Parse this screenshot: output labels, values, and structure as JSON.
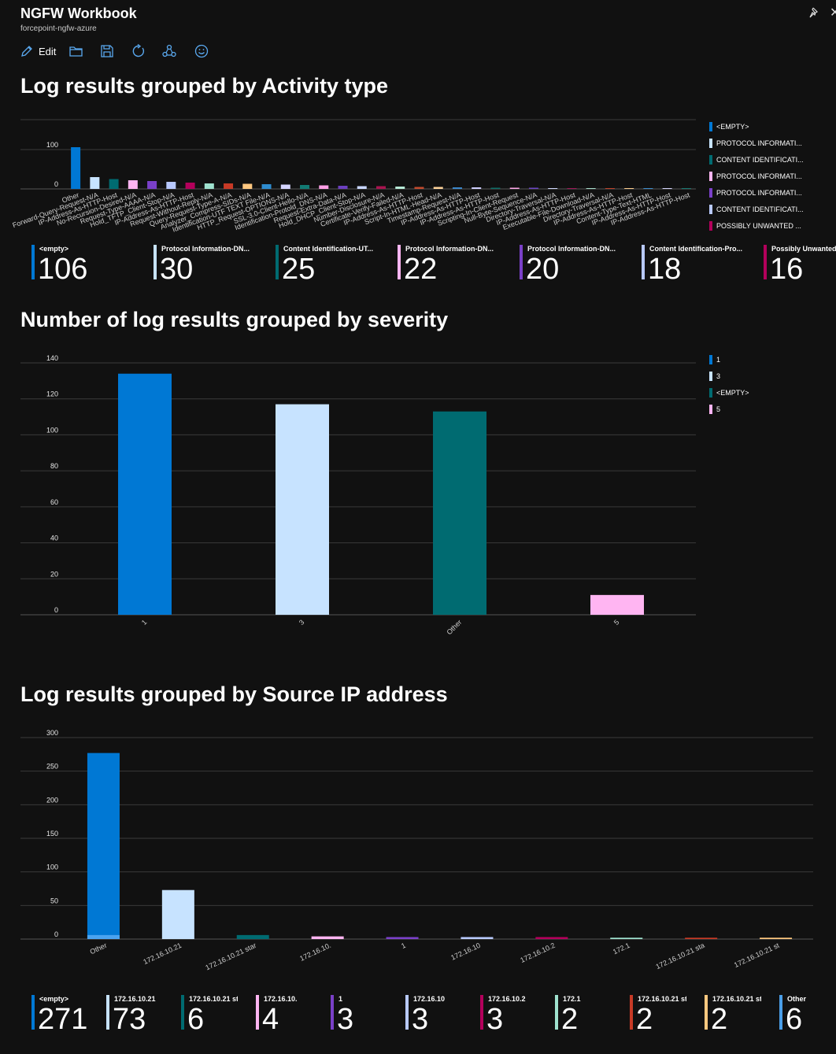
{
  "app": {
    "title": "NGFW Workbook",
    "subtitle": "forcepoint-ngfw-azure"
  },
  "toolbar": {
    "edit_label": "Edit"
  },
  "icons": [
    "pencil-icon",
    "folder-icon",
    "save-icon",
    "refresh-icon",
    "share-icon",
    "feedback-smiley-icon",
    "pin-icon",
    "close-icon"
  ],
  "sections": {
    "activity": {
      "title": "Log results grouped by Activity type"
    },
    "severity": {
      "title": "Number of log results grouped by severity"
    },
    "source_ip": {
      "title": "Log results grouped by Source IP address"
    }
  },
  "chart_data": [
    {
      "type": "bar",
      "ylim": [
        0,
        110
      ],
      "yticks": [
        0,
        100
      ],
      "categories": [
        "Other",
        "Forward-Query-Request-N/A",
        "IP-Address-As-HTTP-Host",
        "No-Recursion-Desired-N/A",
        "Request-Type-AAAA-N/A",
        "Hold_TFTP_Client-Stop-N/A",
        "IP-Address-As-HTTP-Host",
        "Request-Without-Reply-N/A",
        "Query-Request-Type-A-N/A",
        "Analyzer_Compress-SIDs-N/A",
        "Identification-UTF TEXT File-N/A",
        "HTTP_Request-OPTIONS-N/A",
        "SSL-3.0-Client-Hello-N/A",
        "Identification-Protold_DNS-N/A",
        "Request-Extra-Data-N/A",
        "Hold_DHCP_Client-Stop-N/A",
        "Number-Disclosure-N/A",
        "Certificate-Verify-Failed-N/A",
        "IP-Address-As-HTTP-Host",
        "Script-In-HTML-Head-N/A",
        "Timestamp-Request-N/A",
        "IP-Address-As-HTTP-Host",
        "IP-Address-As-HTTP-Host",
        "Scripting-In-Client-Request",
        "Null-Byte-Sequence-N/A",
        "Directory-Traversal-N/A",
        "IP-Address-As-HTTP-Host",
        "Executable-File-Download-N/A",
        "Directory-Traversal-N/A",
        "IP-Address-As-HTTP-Host",
        "Content-Type-Text-HTML",
        "IP-Address-As-HTTP-Host",
        "IP-Address-As-HTTP-Host"
      ],
      "values": [
        106,
        30,
        25,
        22,
        20,
        18,
        16,
        14,
        14,
        13,
        12,
        11,
        10,
        9,
        8,
        7,
        7,
        6,
        5,
        5,
        4,
        4,
        3,
        3,
        3,
        2,
        2,
        2,
        2,
        2,
        1,
        1,
        1
      ],
      "colors": [
        "#0078d4",
        "#c7e3ff",
        "#006b71",
        "#ffb5f2",
        "#7a40c8",
        "#b8c9ff",
        "#b3005b",
        "#9fe2cf",
        "#c73a26",
        "#ffc880",
        "#2e8ccf",
        "#d5d5ff",
        "#127a73",
        "#ff9fe6",
        "#6b3fbf",
        "#c9d6ff",
        "#a8144f",
        "#b7ead7",
        "#c24a2e",
        "#ffd49a",
        "#3c88cc",
        "#cfcfff",
        "#0f6e68",
        "#ffa9e9",
        "#6c47c4",
        "#d2dbff",
        "#a1185a",
        "#a9e0cd",
        "#c2442b",
        "#ffcf8f",
        "#408fd0",
        "#d8d8ff",
        "#1a7a73"
      ],
      "legend": [
        {
          "label": "<EMPTY>",
          "color": "#0078d4"
        },
        {
          "label": "PROTOCOL INFORMATI...",
          "color": "#c7e3ff"
        },
        {
          "label": "CONTENT IDENTIFICATI...",
          "color": "#006b71"
        },
        {
          "label": "PROTOCOL INFORMATI...",
          "color": "#ffb5f2"
        },
        {
          "label": "PROTOCOL INFORMATI...",
          "color": "#7a40c8"
        },
        {
          "label": "CONTENT IDENTIFICATI...",
          "color": "#b8c9ff"
        },
        {
          "label": "POSSIBLY UNWANTED ...",
          "color": "#b3005b"
        }
      ],
      "tiles": [
        {
          "label": "<empty>",
          "value": "106",
          "color": "#0078d4"
        },
        {
          "label": "Protocol Information-DN...",
          "value": "30",
          "color": "#c7e3ff"
        },
        {
          "label": "Content Identification-UT...",
          "value": "25",
          "color": "#006b71"
        },
        {
          "label": "Protocol Information-DN...",
          "value": "22",
          "color": "#ffb5f2"
        },
        {
          "label": "Protocol Information-DN...",
          "value": "20",
          "color": "#7a40c8"
        },
        {
          "label": "Content Identification-Pro...",
          "value": "18",
          "color": "#b8c9ff"
        },
        {
          "label": "Possibly Unwanted Co",
          "value": "16",
          "color": "#b3005b"
        }
      ]
    },
    {
      "type": "bar",
      "ylim": [
        0,
        140
      ],
      "yticks": [
        0,
        20,
        40,
        60,
        80,
        100,
        120,
        140
      ],
      "categories": [
        "1",
        "3",
        "Other",
        "5"
      ],
      "values": [
        134,
        117,
        113,
        11
      ],
      "colors": [
        "#0078d4",
        "#c7e3ff",
        "#006b71",
        "#ffb5f2"
      ],
      "legend": [
        {
          "label": "1",
          "color": "#0078d4"
        },
        {
          "label": "3",
          "color": "#c7e3ff"
        },
        {
          "label": "<EMPTY>",
          "color": "#006b71"
        },
        {
          "label": "5",
          "color": "#ffb5f2"
        }
      ]
    },
    {
      "type": "bar",
      "ylim": [
        0,
        300
      ],
      "yticks": [
        0,
        50,
        100,
        150,
        200,
        250,
        300
      ],
      "categories": [
        "Other",
        "172.16.10.21",
        "172.16.10.21 star",
        "172.16.10.",
        "1",
        "172.16.10",
        "172.16.10.2",
        "172.1",
        "172.16.10.21 sta",
        "172.16.10.21 st"
      ],
      "values": [
        277,
        73,
        6,
        4,
        3,
        3,
        3,
        2,
        2,
        2
      ],
      "inner_values": [
        6,
        0,
        0,
        0,
        0,
        0,
        0,
        0,
        0,
        0
      ],
      "colors": [
        "#0078d4",
        "#c7e3ff",
        "#006b71",
        "#ffb5f2",
        "#7a40c8",
        "#b8c9ff",
        "#b3005b",
        "#9fe2cf",
        "#c73a26",
        "#ffc880"
      ],
      "tiles": [
        {
          "label": "<empty>",
          "value": "271",
          "color": "#0078d4"
        },
        {
          "label": "172.16.10.21",
          "value": "73",
          "color": "#c7e3ff"
        },
        {
          "label": "172.16.10.21 star",
          "value": "6",
          "color": "#006b71"
        },
        {
          "label": "172.16.10.",
          "value": "4",
          "color": "#ffb5f2"
        },
        {
          "label": "1",
          "value": "3",
          "color": "#7a40c8"
        },
        {
          "label": "172.16.10",
          "value": "3",
          "color": "#b8c9ff"
        },
        {
          "label": "172.16.10.2",
          "value": "3",
          "color": "#b3005b"
        },
        {
          "label": "172.1",
          "value": "2",
          "color": "#9fe2cf"
        },
        {
          "label": "172.16.10.21 sta",
          "value": "2",
          "color": "#c73a26"
        },
        {
          "label": "172.16.10.21 st",
          "value": "2",
          "color": "#ffc880"
        },
        {
          "label": "Other",
          "value": "6",
          "color": "#4a9ee8"
        }
      ]
    }
  ]
}
